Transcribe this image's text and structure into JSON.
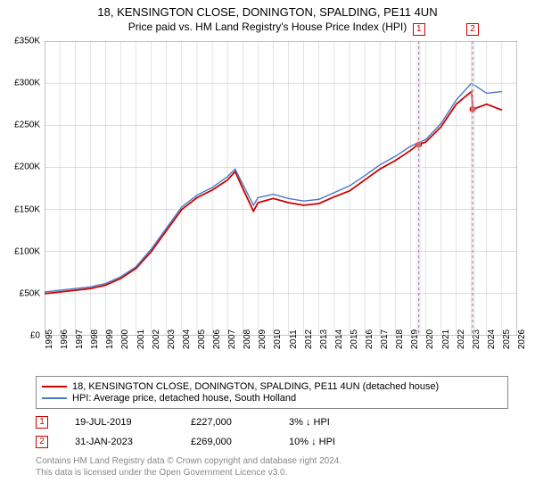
{
  "title": "18, KENSINGTON CLOSE, DONINGTON, SPALDING, PE11 4UN",
  "subtitle": "Price paid vs. HM Land Registry's House Price Index (HPI)",
  "chart": {
    "type": "line",
    "background_color": "#ffffff",
    "grid_color": "#c8c8c8",
    "ylim": [
      0,
      350000
    ],
    "ytick_step": 50000,
    "ytick_labels": [
      "£0",
      "£50K",
      "£100K",
      "£150K",
      "£200K",
      "£250K",
      "£300K",
      "£350K"
    ],
    "xlim": [
      1995,
      2026
    ],
    "xtick_step": 1,
    "xtick_labels": [
      "1995",
      "1996",
      "1997",
      "1998",
      "1999",
      "2000",
      "2001",
      "2002",
      "2003",
      "2004",
      "2005",
      "2006",
      "2007",
      "2008",
      "2009",
      "2010",
      "2011",
      "2012",
      "2013",
      "2014",
      "2015",
      "2016",
      "2017",
      "2018",
      "2019",
      "2020",
      "2021",
      "2022",
      "2023",
      "2024",
      "2025",
      "2026"
    ],
    "series": [
      {
        "name": "price_paid",
        "color": "#cc0000",
        "line_width": 1.8,
        "x": [
          1995,
          1996,
          1997,
          1998,
          1999,
          2000,
          2001,
          2002,
          2003,
          2004,
          2005,
          2006,
          2007,
          2007.5,
          2008,
          2008.7,
          2009,
          2010,
          2011,
          2012,
          2013,
          2014,
          2015,
          2016,
          2017,
          2018,
          2019,
          2019.5,
          2020,
          2021,
          2022,
          2023,
          2023.1,
          2024,
          2025
        ],
        "y": [
          50000,
          52000,
          54000,
          56000,
          60000,
          68000,
          80000,
          100000,
          125000,
          150000,
          164000,
          173000,
          185000,
          195000,
          175000,
          148000,
          158000,
          163000,
          158000,
          155000,
          157000,
          165000,
          172000,
          185000,
          198000,
          208000,
          220000,
          227000,
          230000,
          248000,
          275000,
          290000,
          269000,
          275000,
          268000
        ]
      },
      {
        "name": "hpi",
        "color": "#4a78c4",
        "line_width": 1.4,
        "x": [
          1995,
          1996,
          1997,
          1998,
          1999,
          2000,
          2001,
          2002,
          2003,
          2004,
          2005,
          2006,
          2007,
          2007.5,
          2008,
          2008.7,
          2009,
          2010,
          2011,
          2012,
          2013,
          2014,
          2015,
          2016,
          2017,
          2018,
          2019,
          2020,
          2021,
          2022,
          2023,
          2024,
          2025
        ],
        "y": [
          52000,
          54000,
          56000,
          58000,
          62000,
          70000,
          82000,
          103000,
          128000,
          153000,
          167000,
          176000,
          189000,
          198000,
          180000,
          155000,
          164000,
          168000,
          163000,
          160000,
          162000,
          170000,
          178000,
          190000,
          203000,
          213000,
          225000,
          233000,
          252000,
          280000,
          300000,
          288000,
          290000
        ]
      }
    ],
    "markers": [
      {
        "label": "1",
        "x": 2019.55,
        "value": 227000,
        "date": "19-JUL-2019",
        "delta": "3% ↓ HPI",
        "shade_start": 2019.4,
        "shade_end": 2019.7
      },
      {
        "label": "2",
        "x": 2023.08,
        "value": 269000,
        "date": "31-JAN-2023",
        "delta": "10% ↓ HPI",
        "shade_start": 2022.95,
        "shade_end": 2023.25
      }
    ],
    "marker_border_color": "#cc0000",
    "marker_line_dash": "3,3",
    "label_fontsize": 10,
    "title_fontsize": 13
  },
  "legend": {
    "items": [
      {
        "color": "#cc0000",
        "label": "18, KENSINGTON CLOSE, DONINGTON, SPALDING, PE11 4UN (detached house)"
      },
      {
        "color": "#4a78c4",
        "label": "HPI: Average price, detached house, South Holland"
      }
    ]
  },
  "data_rows": [
    {
      "marker": "1",
      "date": "19-JUL-2019",
      "price": "£227,000",
      "delta": "3% ↓ HPI"
    },
    {
      "marker": "2",
      "date": "31-JAN-2023",
      "price": "£269,000",
      "delta": "10% ↓ HPI"
    }
  ],
  "attribution_line1": "Contains HM Land Registry data © Crown copyright and database right 2024.",
  "attribution_line2": "This data is licensed under the Open Government Licence v3.0."
}
